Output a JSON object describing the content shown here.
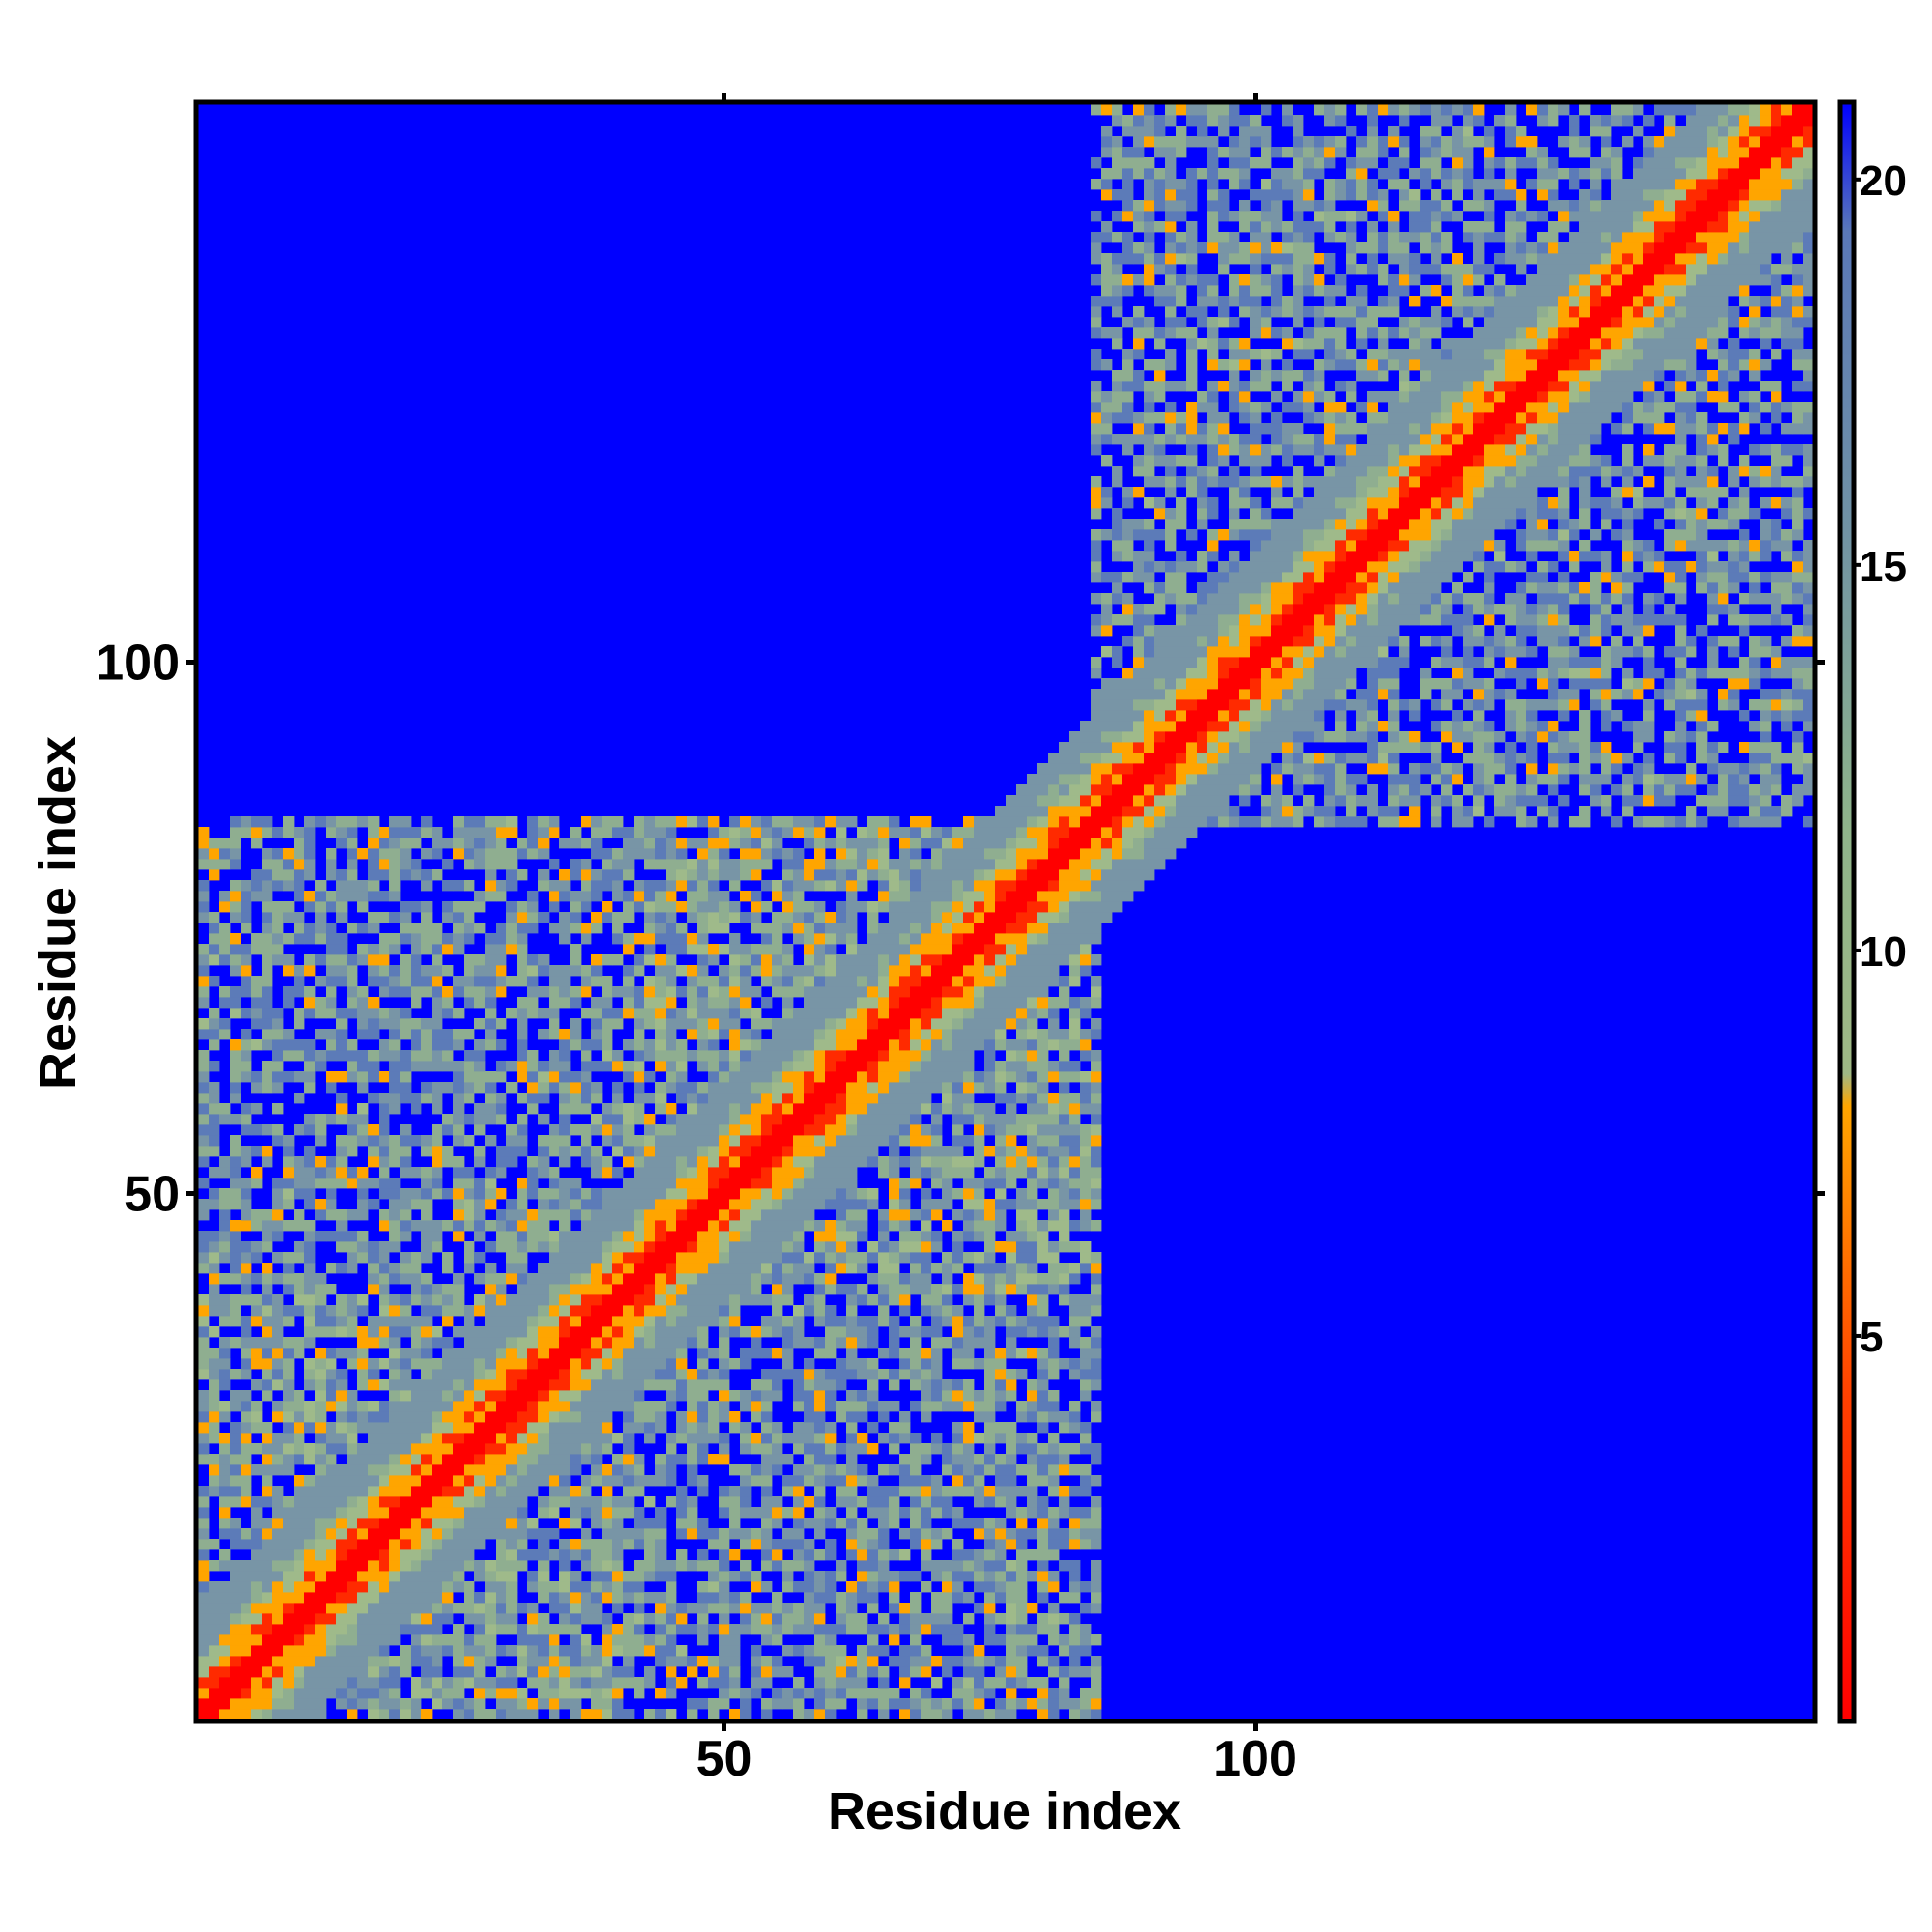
{
  "chart_data": {
    "type": "heatmap",
    "xlabel": "Residue index",
    "ylabel": "Residue index",
    "x_range": [
      1,
      152
    ],
    "y_range": [
      1,
      152
    ],
    "x_ticks": [
      "50",
      "100"
    ],
    "y_ticks": [
      "50",
      "100"
    ],
    "x_tick_values": [
      50,
      100
    ],
    "y_tick_values": [
      50,
      100
    ],
    "colorbar": {
      "range": [
        0,
        21
      ],
      "ticks": [
        "5",
        "10",
        "15",
        "20"
      ],
      "tick_values": [
        5,
        10,
        15,
        20
      ],
      "colors": [
        "#ff0000",
        "#ff6000",
        "#ffa500",
        "#8fb87f",
        "#6a88a8",
        "#0000ff"
      ]
    },
    "diagonal": "distance 0 along diagonal, increasing with separation",
    "contact_blocks": [
      {
        "x_range": [
          1,
          40
        ],
        "y_range": [
          1,
          40
        ],
        "level": "dense"
      },
      {
        "x_range": [
          1,
          40
        ],
        "y_range": [
          40,
          85
        ],
        "level": "medium"
      },
      {
        "x_range": [
          40,
          85
        ],
        "y_range": [
          1,
          40
        ],
        "level": "medium"
      },
      {
        "x_range": [
          40,
          85
        ],
        "y_range": [
          40,
          85
        ],
        "level": "dense"
      },
      {
        "x_range": [
          85,
          152
        ],
        "y_range": [
          85,
          152
        ],
        "level": "medium"
      }
    ],
    "grid": false,
    "legend": "colorbar right"
  },
  "axes": {
    "x_title": "Residue index",
    "y_title": "Residue index"
  }
}
